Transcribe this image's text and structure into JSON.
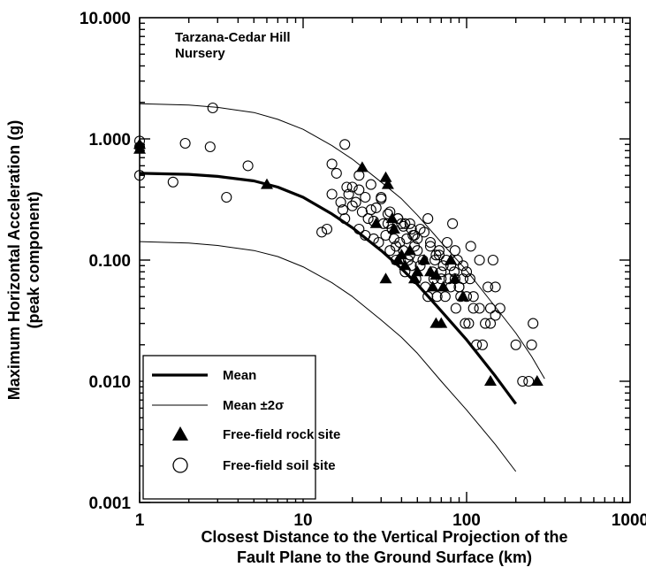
{
  "chart_data": {
    "type": "scatter",
    "title": "",
    "xlabel_line1": "Closest Distance to the Vertical Projection of the",
    "xlabel_line2": "Fault Plane to the Ground Surface (km)",
    "ylabel_line1": "Maximum Horizontal Acceleration (g)",
    "ylabel_line2": "(peak component)",
    "x_scale": "log",
    "y_scale": "log",
    "xlim": [
      1,
      1000
    ],
    "ylim": [
      0.001,
      10
    ],
    "x_ticks": [
      1,
      10,
      100,
      1000
    ],
    "x_tick_labels": [
      "1",
      "10",
      "100",
      "1000"
    ],
    "y_ticks": [
      0.001,
      0.01,
      0.1,
      1,
      10
    ],
    "y_tick_labels": [
      "0.001",
      "0.010",
      "0.100",
      "1.000",
      "10.000"
    ],
    "grid": false,
    "legend_position": "bottom-left",
    "annotation_line1": "Tarzana-Cedar Hill",
    "annotation_line2": "Nursery",
    "series": [
      {
        "name": "Mean",
        "kind": "line",
        "x": [
          1,
          2,
          3,
          5,
          7,
          10,
          15,
          20,
          30,
          40,
          50,
          70,
          100,
          150,
          200
        ],
        "y": [
          0.52,
          0.51,
          0.49,
          0.45,
          0.4,
          0.33,
          0.24,
          0.185,
          0.12,
          0.085,
          0.063,
          0.038,
          0.022,
          0.011,
          0.0065
        ]
      },
      {
        "name": "Mean ±2σ",
        "kind": "line",
        "x": [
          1,
          2,
          3,
          5,
          7,
          10,
          15,
          20,
          30,
          40,
          50,
          70,
          100,
          150,
          200,
          250,
          300
        ],
        "y": [
          1.95,
          1.9,
          1.82,
          1.65,
          1.45,
          1.2,
          0.88,
          0.68,
          0.44,
          0.32,
          0.235,
          0.14,
          0.082,
          0.041,
          0.025,
          0.016,
          0.0105
        ]
      },
      {
        "name": "",
        "kind": "line",
        "x": [
          1,
          2,
          3,
          5,
          7,
          10,
          15,
          20,
          30,
          40,
          50,
          70,
          100,
          150,
          200
        ],
        "y": [
          0.142,
          0.138,
          0.132,
          0.12,
          0.107,
          0.088,
          0.065,
          0.05,
          0.032,
          0.023,
          0.017,
          0.01,
          0.0058,
          0.003,
          0.0018
        ]
      },
      {
        "name": "Free-field rock site",
        "kind": "triangle",
        "x": [
          1,
          1,
          6,
          23,
          32,
          33,
          35,
          36,
          28,
          40,
          45,
          50,
          32,
          55,
          62,
          65,
          70,
          48,
          80,
          85,
          38,
          42,
          60,
          95,
          140,
          270,
          65,
          72
        ],
        "y": [
          0.9,
          0.82,
          0.42,
          0.58,
          0.48,
          0.42,
          0.22,
          0.18,
          0.2,
          0.11,
          0.12,
          0.08,
          0.07,
          0.1,
          0.06,
          0.03,
          0.03,
          0.07,
          0.1,
          0.07,
          0.1,
          0.09,
          0.08,
          0.05,
          0.01,
          0.01,
          0.075,
          0.06
        ]
      },
      {
        "name": "Free-field soil site",
        "kind": "circle",
        "x": [
          1,
          1,
          1,
          1.6,
          1.9,
          2.7,
          2.8,
          3.4,
          4.6,
          13,
          14,
          15,
          16,
          17,
          17.5,
          18,
          18.5,
          19,
          20,
          21,
          22,
          23,
          24,
          25,
          26,
          27,
          28,
          29,
          30,
          31,
          32,
          33,
          34,
          35,
          36,
          37,
          38,
          39,
          40,
          41,
          42,
          43,
          44,
          45,
          46,
          47,
          48,
          49,
          50,
          52,
          54,
          56,
          58,
          60,
          62,
          64,
          66,
          68,
          70,
          72,
          74,
          76,
          78,
          80,
          82,
          84,
          86,
          88,
          90,
          92,
          95,
          98,
          100,
          103,
          106,
          110,
          115,
          120,
          125,
          130,
          135,
          140,
          145,
          150,
          160,
          200,
          220,
          240,
          250,
          255,
          15,
          18,
          20,
          22,
          26,
          30,
          34,
          38,
          42,
          46,
          50,
          55,
          60,
          65,
          70,
          75,
          80,
          85,
          90,
          100,
          110,
          120,
          140,
          150,
          105,
          58,
          63,
          68,
          85,
          95,
          22,
          24,
          27,
          33,
          37,
          41,
          45,
          48,
          52
        ],
        "y": [
          0.96,
          0.86,
          0.5,
          0.44,
          0.92,
          0.86,
          1.8,
          0.33,
          0.6,
          0.17,
          0.18,
          0.62,
          0.52,
          0.3,
          0.26,
          0.9,
          0.4,
          0.35,
          0.4,
          0.3,
          0.18,
          0.25,
          0.16,
          0.22,
          0.26,
          0.15,
          0.27,
          0.14,
          0.33,
          0.2,
          0.16,
          0.2,
          0.12,
          0.18,
          0.15,
          0.1,
          0.22,
          0.14,
          0.2,
          0.12,
          0.08,
          0.15,
          0.1,
          0.2,
          0.09,
          0.16,
          0.13,
          0.07,
          0.12,
          0.18,
          0.1,
          0.06,
          0.22,
          0.14,
          0.08,
          0.1,
          0.05,
          0.12,
          0.07,
          0.09,
          0.05,
          0.14,
          0.07,
          0.06,
          0.2,
          0.08,
          0.04,
          0.1,
          0.06,
          0.05,
          0.07,
          0.03,
          0.05,
          0.03,
          0.13,
          0.04,
          0.02,
          0.1,
          0.02,
          0.03,
          0.06,
          0.04,
          0.1,
          0.06,
          0.04,
          0.02,
          0.01,
          0.01,
          0.02,
          0.03,
          0.35,
          0.22,
          0.28,
          0.5,
          0.42,
          0.32,
          0.25,
          0.22,
          0.2,
          0.18,
          0.15,
          0.17,
          0.13,
          0.11,
          0.08,
          0.1,
          0.09,
          0.07,
          0.06,
          0.08,
          0.05,
          0.04,
          0.03,
          0.035,
          0.07,
          0.05,
          0.07,
          0.11,
          0.12,
          0.09,
          0.38,
          0.33,
          0.21,
          0.24,
          0.13,
          0.19,
          0.11,
          0.16,
          0.09
        ]
      }
    ]
  }
}
